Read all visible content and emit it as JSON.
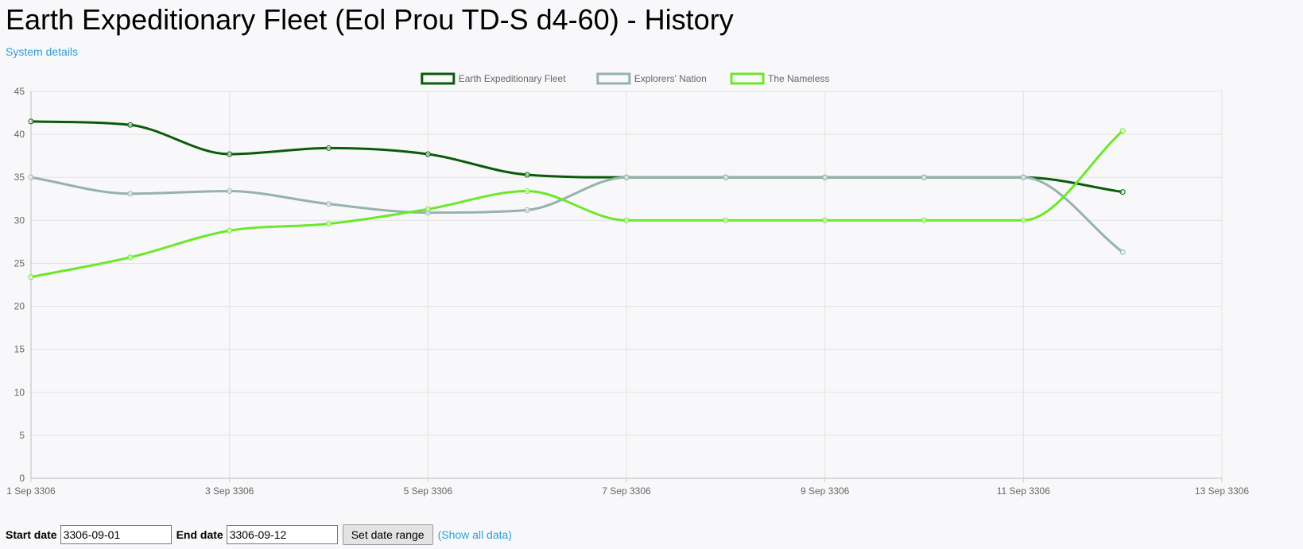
{
  "page": {
    "title": "Earth Expeditionary Fleet (Eol Prou TD-S d4-60) - History",
    "system_details_link": "System details"
  },
  "controls": {
    "start_label": "Start date",
    "start_value": "3306-09-01",
    "end_label": "End date",
    "end_value": "3306-09-12",
    "set_button": "Set date range",
    "show_all_link": "(Show all data)"
  },
  "chart_data": {
    "type": "line",
    "legend_position": "top-center",
    "grid": true,
    "x_tick_labels": [
      "1 Sep 3306",
      "3 Sep 3306",
      "5 Sep 3306",
      "7 Sep 3306",
      "9 Sep 3306",
      "11 Sep 3306",
      "13 Sep 3306"
    ],
    "xlim": [
      "3306-09-01",
      "3306-09-13"
    ],
    "ylim": [
      0,
      45
    ],
    "y_ticks": [
      0,
      5,
      10,
      15,
      20,
      25,
      30,
      35,
      40,
      45
    ],
    "x": [
      "3306-09-01",
      "3306-09-02",
      "3306-09-03",
      "3306-09-04",
      "3306-09-05",
      "3306-09-06",
      "3306-09-07",
      "3306-09-08",
      "3306-09-09",
      "3306-09-10",
      "3306-09-11",
      "3306-09-12"
    ],
    "series": [
      {
        "name": "Earth Expeditionary Fleet",
        "color": "#0a5c0a",
        "values": [
          41.5,
          41.1,
          37.7,
          38.4,
          37.7,
          35.3,
          35.0,
          35.0,
          35.0,
          35.0,
          35.0,
          33.3
        ]
      },
      {
        "name": "Explorers' Nation",
        "color": "#95b2ad",
        "values": [
          35.0,
          33.1,
          33.4,
          31.9,
          30.9,
          31.2,
          35.0,
          35.0,
          35.0,
          35.0,
          35.0,
          26.3
        ]
      },
      {
        "name": "The Nameless",
        "color": "#6ce82a",
        "values": [
          23.4,
          25.7,
          28.8,
          29.6,
          31.3,
          33.4,
          30.0,
          30.0,
          30.0,
          30.0,
          30.0,
          40.4
        ]
      }
    ]
  }
}
